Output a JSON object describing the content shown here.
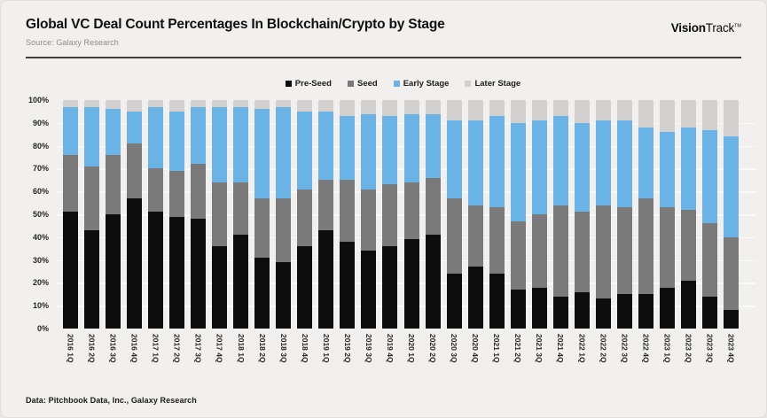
{
  "header": {
    "title": "Global VC Deal Count Percentages In Blockchain/Crypto by Stage",
    "source": "Source: Galaxy Research",
    "brand_bold": "Vision",
    "brand_regular": "Track",
    "brand_tm": "TM"
  },
  "footer": {
    "credit": "Data: Pitchbook Data, Inc., Galaxy Research"
  },
  "chart_data": {
    "type": "bar",
    "stacked": true,
    "stacked_to_100": true,
    "title": "Global VC Deal Count Percentages In Blockchain/Crypto by Stage",
    "xlabel": "",
    "ylabel": "",
    "ylim": [
      0,
      100
    ],
    "y_ticks": [
      "0%",
      "10%",
      "20%",
      "30%",
      "40%",
      "50%",
      "60%",
      "70%",
      "80%",
      "90%",
      "100%"
    ],
    "grid": "horizontal",
    "legend_position": "top-center",
    "categories": [
      "2016 1Q",
      "2016 2Q",
      "2016 3Q",
      "2016 4Q",
      "2017 1Q",
      "2017 2Q",
      "2017 3Q",
      "2017 4Q",
      "2018 1Q",
      "2018 2Q",
      "2018 3Q",
      "2018 4Q",
      "2019 1Q",
      "2019 2Q",
      "2019 3Q",
      "2019 4Q",
      "2020 1Q",
      "2020 2Q",
      "2020 3Q",
      "2020 4Q",
      "2021 1Q",
      "2021 2Q",
      "2021 3Q",
      "2021 4Q",
      "2022 1Q",
      "2022 2Q",
      "2022 3Q",
      "2022 4Q",
      "2023 1Q",
      "2023 2Q",
      "2023 3Q",
      "2023 4Q"
    ],
    "series": [
      {
        "name": "Pre-Seed",
        "color": "#0d0d0d",
        "values": [
          51,
          43,
          50,
          57,
          51,
          49,
          48,
          36,
          41,
          31,
          29,
          36,
          43,
          38,
          34,
          36,
          39,
          41,
          24,
          27,
          24,
          17,
          18,
          14,
          16,
          13,
          15,
          15,
          18,
          21,
          14,
          8
        ]
      },
      {
        "name": "Seed",
        "color": "#7a7a7a",
        "values": [
          25,
          28,
          26,
          24,
          19,
          20,
          24,
          28,
          23,
          26,
          28,
          25,
          22,
          27,
          27,
          27,
          25,
          25,
          33,
          27,
          29,
          30,
          32,
          40,
          35,
          41,
          38,
          42,
          35,
          31,
          32,
          32
        ]
      },
      {
        "name": "Early Stage",
        "color": "#6ab3e7",
        "values": [
          21,
          26,
          20,
          14,
          27,
          26,
          25,
          33,
          33,
          39,
          40,
          34,
          30,
          28,
          33,
          30,
          30,
          28,
          34,
          37,
          40,
          43,
          41,
          39,
          39,
          37,
          38,
          31,
          33,
          36,
          41,
          44
        ]
      },
      {
        "name": "Later Stage",
        "color": "#d2d1cf",
        "values": [
          3,
          3,
          4,
          5,
          3,
          5,
          3,
          3,
          3,
          4,
          3,
          5,
          5,
          7,
          6,
          7,
          6,
          6,
          9,
          9,
          7,
          10,
          9,
          7,
          10,
          9,
          9,
          12,
          14,
          12,
          13,
          16
        ]
      }
    ]
  }
}
